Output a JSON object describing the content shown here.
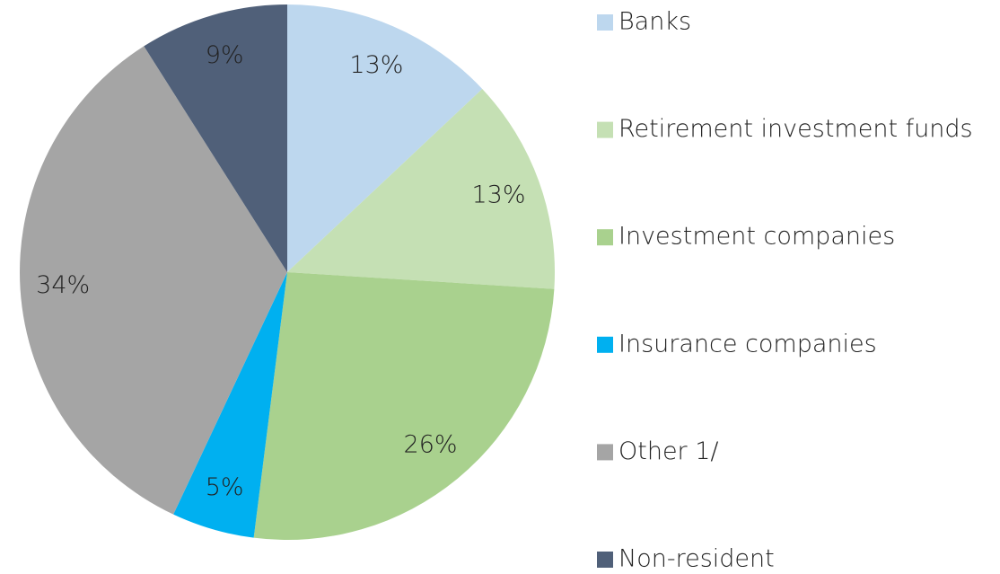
{
  "chart_data": {
    "type": "pie",
    "categories": [
      "Banks",
      "Retirement investment funds",
      "Investment companies",
      "Insurance companies",
      "Other 1/",
      "Non-resident"
    ],
    "values": [
      13,
      13,
      26,
      5,
      34,
      9
    ],
    "value_labels": [
      "13%",
      "13%",
      "26%",
      "5%",
      "34%",
      "9%"
    ],
    "colors": [
      "#bdd7ee",
      "#c5e0b4",
      "#a9d18e",
      "#00b0f0",
      "#a5a5a5",
      "#506079"
    ],
    "legend": "right"
  }
}
